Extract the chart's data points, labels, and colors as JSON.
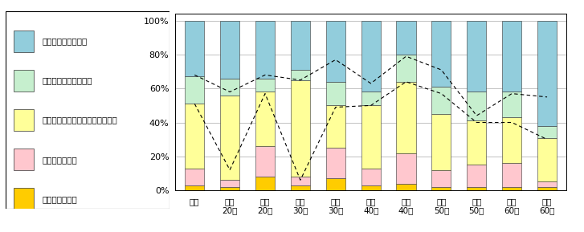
{
  "categories": [
    "全体",
    "男性\n20代",
    "女性\n20代",
    "男性\n30代",
    "女性\n30代",
    "男性\n40代",
    "女性\n40代",
    "男性\n50代",
    "女性\n50代",
    "男性\n60代",
    "女性\n60代"
  ],
  "legend_labels": [
    "全く利用したくない",
    "あまり利用したくない",
    "どちらともいえない・わからない",
    "まあ利用したい",
    "ぜひ利用したい"
  ],
  "colors_bottom_to_top": [
    "#FFCC00",
    "#FFC7CE",
    "#FFFF99",
    "#C6EFCE",
    "#92CDDC"
  ],
  "data_bottom_to_top": [
    [
      3,
      2,
      8,
      3,
      7,
      3,
      4,
      2,
      2,
      2,
      2
    ],
    [
      10,
      4,
      18,
      5,
      18,
      10,
      18,
      10,
      13,
      14,
      3
    ],
    [
      38,
      50,
      32,
      57,
      25,
      37,
      42,
      33,
      26,
      27,
      26
    ],
    [
      16,
      10,
      8,
      6,
      14,
      8,
      16,
      16,
      17,
      15,
      7
    ],
    [
      33,
      34,
      34,
      29,
      36,
      42,
      20,
      39,
      42,
      42,
      62
    ]
  ],
  "dashed_line1_values": [
    68,
    58,
    68,
    65,
    77,
    63,
    79,
    71,
    44,
    57,
    55
  ],
  "dashed_line2_values": [
    51,
    12,
    57,
    6,
    49,
    50,
    64,
    57,
    40,
    40,
    30
  ],
  "background_color": "#FFFFFF",
  "bar_width": 0.55,
  "ylim": [
    0,
    104
  ],
  "yticks": [
    0,
    20,
    40,
    60,
    80,
    100
  ],
  "ytick_labels": [
    "0%",
    "20%",
    "40%",
    "60%",
    "80%",
    "100%"
  ],
  "grid_color": "#AAAAAA",
  "legend_fontsize": 7.5,
  "tick_fontsize": 8.0,
  "xtick_fontsize": 7.5
}
